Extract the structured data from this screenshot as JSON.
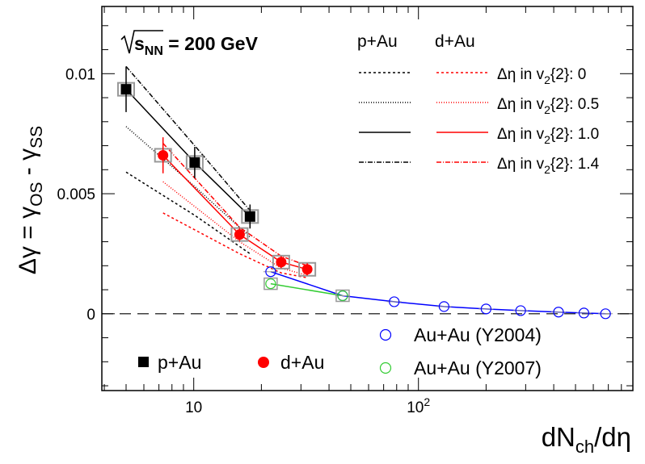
{
  "chart_data": {
    "type": "scatter",
    "xscale": "log",
    "xlim": [
      3.9,
      900
    ],
    "ylim": [
      -0.0032,
      0.0128
    ],
    "xlabel_main": "dN",
    "xlabel_sub": "ch",
    "xlabel_tail": "/dη",
    "ylabel_main": "Δγ = γ",
    "ylabel_sub1": "OS",
    "ylabel_mid": " - γ",
    "ylabel_sub2": "SS",
    "yticks": [
      {
        "value": 0,
        "label": "0"
      },
      {
        "value": 0.005,
        "label": "0.005"
      },
      {
        "value": 0.01,
        "label": "0.01"
      }
    ],
    "xticks": [
      {
        "value": 10,
        "label": "10"
      },
      {
        "value": 100,
        "label": "10",
        "sup": "2"
      }
    ],
    "energy_label": {
      "main": "s",
      "sub": "NN",
      "tail": " = 200 GeV"
    },
    "legend_headers": {
      "pAu": "p+Au",
      "dAu": "d+Au"
    },
    "line_legend": [
      {
        "label": "Δη in v",
        "sub": "2",
        "tail": "{2}: 0",
        "dash": "3,3"
      },
      {
        "label": "Δη in v",
        "sub": "2",
        "tail": "{2}: 0.5",
        "dash": "1,2"
      },
      {
        "label": "Δη in v",
        "sub": "2",
        "tail": "{2}: 1.0",
        "dash": ""
      },
      {
        "label": "Δη in v",
        "sub": "2",
        "tail": "{2}: 1.4",
        "dash": "6,2,1,2"
      }
    ],
    "colors": {
      "pAu": "#000000",
      "dAu": "#ff0000",
      "auau2004": "#0000ff",
      "auau2007": "#33cc33",
      "syst": "#999999"
    },
    "series": [
      {
        "name": "p+Au",
        "marker": "square",
        "color": "#000000",
        "points": [
          {
            "x": 5.0,
            "y": 0.00935,
            "err": 0.00095
          },
          {
            "x": 10.1,
            "y": 0.0063,
            "err": 0.00065
          },
          {
            "x": 17.8,
            "y": 0.00405,
            "err": 0.0005
          }
        ]
      },
      {
        "name": "d+Au",
        "marker": "circle",
        "color": "#ff0000",
        "points": [
          {
            "x": 7.3,
            "y": 0.0066,
            "err": 0.00075
          },
          {
            "x": 16.0,
            "y": 0.0033,
            "err": 0.00027
          },
          {
            "x": 24.5,
            "y": 0.00215,
            "err": 0.00025
          },
          {
            "x": 32.0,
            "y": 0.00185,
            "err": 0.00025
          }
        ]
      },
      {
        "name": "Au+Au (Y2004)",
        "marker": "open-circle",
        "color": "#0000ff",
        "points": [
          {
            "x": 22.0,
            "y": 0.00175
          },
          {
            "x": 46.0,
            "y": 0.00075
          },
          {
            "x": 78.0,
            "y": 0.0005
          },
          {
            "x": 130.0,
            "y": 0.0003
          },
          {
            "x": 200.0,
            "y": 0.0002
          },
          {
            "x": 285.0,
            "y": 0.00013
          },
          {
            "x": 420.0,
            "y": 7e-05
          },
          {
            "x": 545.0,
            "y": 3e-05
          },
          {
            "x": 680.0,
            "y": 0.0
          }
        ]
      },
      {
        "name": "Au+Au (Y2007)",
        "marker": "open-circle",
        "color": "#33cc33",
        "points": [
          {
            "x": 22.0,
            "y": 0.00125
          },
          {
            "x": 46.0,
            "y": 0.00075
          }
        ]
      }
    ],
    "model_lines": [
      {
        "group": "pAu",
        "dash": "3,3",
        "x": [
          5.0,
          10.1,
          17.8
        ],
        "y": [
          0.0059,
          0.0041,
          0.0025
        ]
      },
      {
        "group": "pAu",
        "dash": "1,2",
        "x": [
          5.0,
          10.1,
          17.8
        ],
        "y": [
          0.0078,
          0.0053,
          0.0032
        ]
      },
      {
        "group": "pAu",
        "dash": "",
        "x": [
          5.0,
          10.1,
          17.8
        ],
        "y": [
          0.00935,
          0.0063,
          0.00405
        ]
      },
      {
        "group": "pAu",
        "dash": "6,2,1,2",
        "x": [
          5.0,
          10.1,
          17.8
        ],
        "y": [
          0.0103,
          0.007,
          0.0043
        ]
      },
      {
        "group": "dAu",
        "dash": "3,3",
        "x": [
          7.3,
          16.0,
          24.5,
          32.0
        ],
        "y": [
          0.0042,
          0.0025,
          0.0017,
          0.0015
        ]
      },
      {
        "group": "dAu",
        "dash": "1,2",
        "x": [
          7.3,
          16.0,
          24.5,
          32.0
        ],
        "y": [
          0.0055,
          0.003,
          0.0019,
          0.0016
        ]
      },
      {
        "group": "dAu",
        "dash": "",
        "x": [
          7.3,
          16.0,
          24.5,
          32.0
        ],
        "y": [
          0.0066,
          0.0033,
          0.00215,
          0.00185
        ]
      },
      {
        "group": "dAu",
        "dash": "6,2,1,2",
        "x": [
          7.3,
          16.0,
          24.5,
          32.0
        ],
        "y": [
          0.0071,
          0.0036,
          0.0024,
          0.002
        ]
      }
    ],
    "marker_legend": [
      {
        "label": "p+Au",
        "marker": "square",
        "color": "#000000"
      },
      {
        "label": "d+Au",
        "marker": "circle",
        "color": "#ff0000"
      },
      {
        "label": "Au+Au (Y2004)",
        "marker": "open-circle",
        "color": "#0000ff"
      },
      {
        "label": "Au+Au (Y2007)",
        "marker": "open-circle",
        "color": "#33cc33"
      }
    ]
  }
}
